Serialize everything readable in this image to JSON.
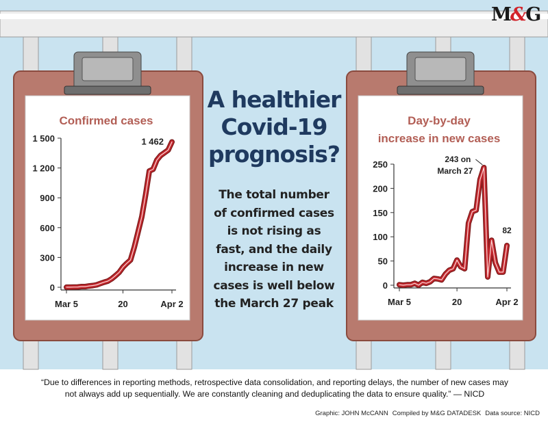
{
  "colors": {
    "sky": "#c9e3f0",
    "board": "#b87a6e",
    "board_edge": "#8a4a3e",
    "paper": "#ffffff",
    "line": "#c0272d",
    "line_outline": "#7a1a1a",
    "headline": "#1f3a5f",
    "chart_title": "#b25e55"
  },
  "logo": {
    "m": "M",
    "amp": "&",
    "g": "G"
  },
  "headline": {
    "line1": "A healthier",
    "line2": "Covid-19",
    "line3": "prognosis?"
  },
  "subhead": {
    "line1": "The total number",
    "line2": "of confirmed cases",
    "line3": "is not rising as",
    "line4": "fast, and the daily",
    "line5": "increase in new",
    "line6": "cases is well below",
    "line7": "the March 27 peak"
  },
  "quote": {
    "line1": "“Due to differences in reporting methods, retrospective data consolidation, and reporting delays, the number of new cases may",
    "line2": "not always add up sequentially. We are constantly cleaning and deduplicating the data to ensure quality.” — NICD"
  },
  "credits": {
    "graphic": "Graphic: JOHN McCANN",
    "compiled": "Compiled by M&G DATADESK",
    "source": "Data source: NICD"
  },
  "chart_data": [
    {
      "type": "line",
      "title": "Confirmed cases",
      "x": [
        "Mar 5",
        "Mar 6",
        "Mar 7",
        "Mar 8",
        "Mar 9",
        "Mar 10",
        "Mar 11",
        "Mar 12",
        "Mar 13",
        "Mar 14",
        "Mar 15",
        "Mar 16",
        "Mar 17",
        "Mar 18",
        "Mar 19",
        "Mar 20",
        "Mar 21",
        "Mar 22",
        "Mar 23",
        "Mar 24",
        "Mar 25",
        "Mar 26",
        "Mar 27",
        "Mar 28",
        "Mar 29",
        "Mar 30",
        "Mar 31",
        "Apr 1",
        "Apr 2"
      ],
      "values": [
        1,
        1,
        2,
        3,
        7,
        7,
        13,
        17,
        24,
        38,
        51,
        62,
        85,
        116,
        150,
        202,
        240,
        274,
        402,
        554,
        709,
        927,
        1170,
        1187,
        1280,
        1326,
        1353,
        1380,
        1462
      ],
      "xtick_labels": [
        "Mar 5",
        "20",
        "Apr 2"
      ],
      "ytick_labels": [
        "0",
        "300",
        "600",
        "900",
        "1 200",
        "1 500"
      ],
      "yticks": [
        0,
        300,
        600,
        900,
        1200,
        1500
      ],
      "ylim": [
        0,
        1500
      ],
      "annotation": {
        "text": "1 462",
        "x": "Apr 2",
        "y": 1462
      }
    },
    {
      "type": "line",
      "title_line1": "Day-by-day",
      "title_line2": "increase in new cases",
      "x": [
        "Mar 5",
        "Mar 6",
        "Mar 7",
        "Mar 8",
        "Mar 9",
        "Mar 10",
        "Mar 11",
        "Mar 12",
        "Mar 13",
        "Mar 14",
        "Mar 15",
        "Mar 16",
        "Mar 17",
        "Mar 18",
        "Mar 19",
        "Mar 20",
        "Mar 21",
        "Mar 22",
        "Mar 23",
        "Mar 24",
        "Mar 25",
        "Mar 26",
        "Mar 27",
        "Mar 28",
        "Mar 29",
        "Mar 30",
        "Mar 31",
        "Apr 1",
        "Apr 2"
      ],
      "values": [
        1,
        0,
        1,
        1,
        4,
        0,
        6,
        4,
        7,
        14,
        13,
        11,
        23,
        31,
        34,
        52,
        38,
        34,
        128,
        152,
        155,
        218,
        243,
        17,
        93,
        46,
        27,
        27,
        82
      ],
      "xtick_labels": [
        "Mar 5",
        "20",
        "Apr 2"
      ],
      "ytick_labels": [
        "0",
        "50",
        "100",
        "150",
        "200",
        "250"
      ],
      "yticks": [
        0,
        50,
        100,
        150,
        200,
        250
      ],
      "ylim": [
        0,
        250
      ],
      "peak_annotation": {
        "line1": "243 on",
        "line2": "March 27",
        "x": "Mar 27",
        "y": 243
      },
      "end_annotation": {
        "text": "82",
        "x": "Apr 2",
        "y": 82
      }
    }
  ]
}
